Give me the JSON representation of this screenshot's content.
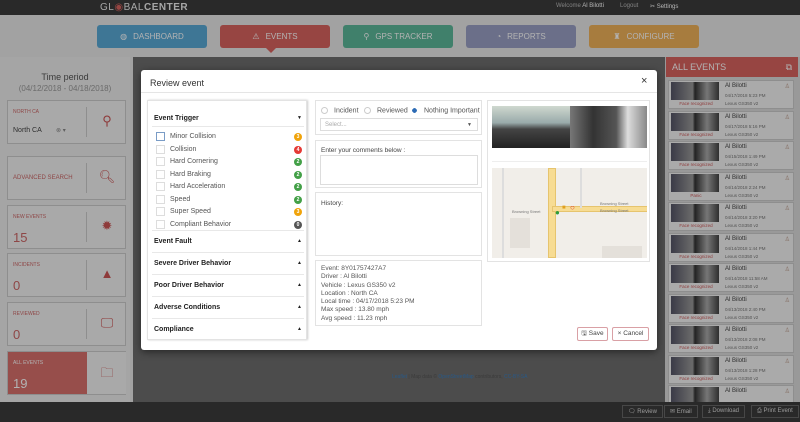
{
  "topbar": {
    "logo": "GL◉BALCENTER",
    "logo_a": "GL",
    "logo_b": "BAL",
    "logo_c": "CENTER",
    "welcome": "Welcome",
    "user": "Al Bilotti",
    "logout": "Logout",
    "settings": "Settings"
  },
  "nav": [
    {
      "label": "DASHBOARD",
      "icon": "dashboard-icon",
      "color": "#5aa9d6"
    },
    {
      "label": "EVENTS",
      "icon": "warning-icon",
      "color": "#d9635f"
    },
    {
      "label": "GPS TRACKER",
      "icon": "map-pin-icon",
      "color": "#5cb89a"
    },
    {
      "label": "REPORTS",
      "icon": "pie-chart-icon",
      "color": "#9aa0c4"
    },
    {
      "label": "CONFIGURE",
      "icon": "wrench-icon",
      "color": "#f0b25a"
    }
  ],
  "left": {
    "time_title": "Time period",
    "time_range": "(04/12/2018 - 04/18/2018)",
    "region": {
      "label": "NORTH CA",
      "value": "North CA"
    },
    "advanced": "ADVANCED SEARCH",
    "new_events": {
      "label": "NEW EVENTS",
      "value": "15"
    },
    "incidents": {
      "label": "INCIDENTS",
      "value": "0"
    },
    "reviewed": {
      "label": "REVIEWED",
      "value": "0"
    },
    "all_events": {
      "label": "ALL EVENTS",
      "value": "19"
    }
  },
  "right": {
    "title": "ALL EVENTS",
    "events": [
      {
        "driver": "Al Bilotti",
        "date": "04/17/2018 5:23 PM",
        "vehicle": "Lexus GS350 v2",
        "tag": "Face recognized"
      },
      {
        "driver": "Al Bilotti",
        "date": "04/17/2018 5:16 PM",
        "vehicle": "Lexus GS350 v2",
        "tag": "Face recognized"
      },
      {
        "driver": "Al Bilotti",
        "date": "04/15/2018 1:49 PM",
        "vehicle": "Lexus GS350 v2",
        "tag": "Face recognized"
      },
      {
        "driver": "Al Bilotti",
        "date": "04/14/2018 2:24 PM",
        "vehicle": "Lexus GS350 v2",
        "tag": "Panic"
      },
      {
        "driver": "Al Bilotti",
        "date": "04/14/2018 3:20 PM",
        "vehicle": "Lexus GS350 v2",
        "tag": "Face recognized"
      },
      {
        "driver": "Al Bilotti",
        "date": "04/14/2018 1:44 PM",
        "vehicle": "Lexus GS350 v2",
        "tag": "Face recognized"
      },
      {
        "driver": "Al Bilotti",
        "date": "04/14/2018 11:58 AM",
        "vehicle": "Lexus GS350 v2",
        "tag": "Face recognized"
      },
      {
        "driver": "Al Bilotti",
        "date": "04/13/2018 2:40 PM",
        "vehicle": "Lexus GS350 v2",
        "tag": "Face recognized"
      },
      {
        "driver": "Al Bilotti",
        "date": "04/13/2018 2:08 PM",
        "vehicle": "Lexus GS350 v2",
        "tag": "Face recognized"
      },
      {
        "driver": "Al Bilotti",
        "date": "04/13/2018 1:28 PM",
        "vehicle": "Lexus GS350 v2",
        "tag": "Face recognized"
      },
      {
        "driver": "Al Bilotti",
        "date": "",
        "vehicle": "",
        "tag": ""
      }
    ]
  },
  "map_attribution": {
    "leaflet": "Leaflet",
    "sep": " | Map data © ",
    "osm": "OpenStreetMap",
    "contrib": " contributors, ",
    "license": "CC-BY-SA"
  },
  "bottom": {
    "review": "Review",
    "email": "Email",
    "download": "Download",
    "print": "Print Event"
  },
  "modal": {
    "title": "Review event",
    "close": "×",
    "trigger": {
      "title": "Event Trigger",
      "items": [
        {
          "label": "Minor Collision",
          "count": "3",
          "color": "#f0a30a"
        },
        {
          "label": "Collision",
          "count": "4",
          "color": "#e53935"
        },
        {
          "label": "Hard Cornering",
          "count": "2",
          "color": "#43a047"
        },
        {
          "label": "Hard Braking",
          "count": "2",
          "color": "#43a047"
        },
        {
          "label": "Hard Acceleration",
          "count": "2",
          "color": "#43a047"
        },
        {
          "label": "Speed",
          "count": "2",
          "color": "#43a047"
        },
        {
          "label": "Super Speed",
          "count": "3",
          "color": "#f0a30a"
        },
        {
          "label": "Compliant Behavior",
          "count": "0",
          "color": "#555555"
        }
      ]
    },
    "sections": [
      "Event Fault",
      "Severe Driver Behavior",
      "Poor Driver Behavior",
      "Adverse Conditions",
      "Compliance"
    ],
    "status": {
      "options": [
        "Incident",
        "Reviewed",
        "Nothing Important"
      ],
      "selected": "Nothing Important"
    },
    "select_placeholder": "Select...",
    "comments_label": "Enter your comments below :",
    "history_label": "History:",
    "info": [
      "Event: 8Y01757427A7",
      "Driver : Al Bilotti",
      "Vehicle : Lexus GS350 v2",
      "Location : North CA",
      "Local time : 04/17/2018 5:23 PM",
      "Max speed : 13.80 mph",
      "Avg speed : 11.23 mph"
    ],
    "map_streets": {
      "a": "Browning Street",
      "b": "Browning Street",
      "c": "Browning Street"
    },
    "save": "Save",
    "cancel": "Cancel"
  }
}
